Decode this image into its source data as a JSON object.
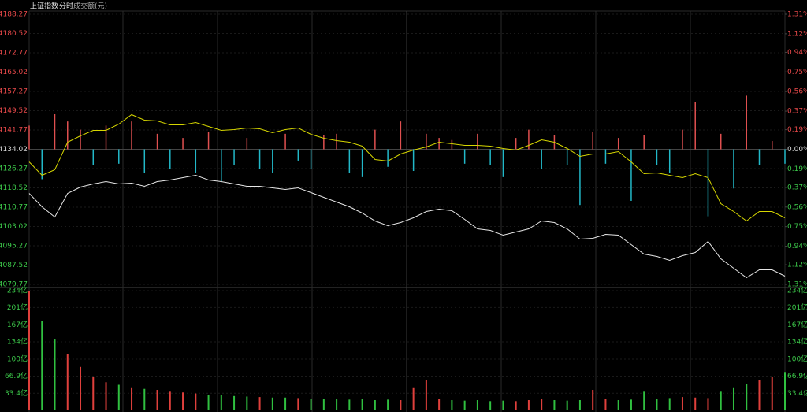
{
  "chart_data": [
    {
      "type": "line",
      "title": "上证指数",
      "subtitle": "分时",
      "ylim": [
        4079.77,
        4188.27
      ],
      "yticks": [
        4188.27,
        4180.52,
        4172.77,
        4165.02,
        4157.27,
        4149.52,
        4141.77,
        4134.02,
        4126.27,
        4118.52,
        4110.77,
        4103.02,
        4095.27,
        4087.52,
        4079.77
      ],
      "y2lim": [
        -1.31,
        1.31
      ],
      "y2ticks": [
        {
          "value": 1.31,
          "label": "1.31%"
        },
        {
          "value": 1.12,
          "label": "1.12%"
        },
        {
          "value": 0.94,
          "label": "0.94%"
        },
        {
          "value": 0.75,
          "label": "0.75%"
        },
        {
          "value": 0.56,
          "label": "0.56%"
        },
        {
          "value": 0.37,
          "label": "0.37%"
        },
        {
          "value": 0.19,
          "label": "0.19%"
        },
        {
          "value": 0,
          "label": "0.00%"
        },
        {
          "value": -0.19,
          "label": "0.19%"
        },
        {
          "value": -0.37,
          "label": "0.37%"
        },
        {
          "value": -0.56,
          "label": "0.56%"
        },
        {
          "value": -0.75,
          "label": "0.75%"
        },
        {
          "value": -0.94,
          "label": "0.94%"
        },
        {
          "value": -1.12,
          "label": "1.12%"
        },
        {
          "value": -1.31,
          "label": "1.31%"
        }
      ],
      "up_color": "#e8494a",
      "flat_color": "#d8d8d8",
      "down_color": "#3cc84a",
      "series": [
        {
          "color": "#e6e6e6",
          "values": [
            4116.31,
            4110.93,
            4106.82,
            4116.31,
            4118.84,
            4120.1,
            4121.05,
            4120.1,
            4120.42,
            4119.15,
            4121.05,
            4121.68,
            4122.63,
            4123.58,
            4121.68,
            4121.05,
            4120.1,
            4119.15,
            4119.15,
            4118.52,
            4117.89,
            4118.52,
            4116.62,
            4114.73,
            4112.83,
            4110.93,
            4108.4,
            4105.24,
            4103.34,
            4104.6,
            4106.5,
            4109.03,
            4109.98,
            4109.35,
            4105.87,
            4102.07,
            4101.44,
            4099.54,
            4100.81,
            4102.07,
            4105.24,
            4104.6,
            4102.07,
            4097.96,
            4098.28,
            4099.86,
            4099.54,
            4095.75,
            4091.95,
            4091.0,
            4089.42,
            4091.32,
            4092.58,
            4097.01,
            4090.05,
            4086.26,
            4082.46,
            4085.63,
            4085.63,
            4083.1
          ]
        },
        {
          "color": "#d6d600",
          "values": [
            4128.96,
            4123.58,
            4125.8,
            4136.87,
            4139.4,
            4141.61,
            4141.61,
            4144.14,
            4147.94,
            4145.72,
            4145.41,
            4143.83,
            4143.83,
            4144.77,
            4143.19,
            4141.61,
            4141.93,
            4142.56,
            4142.24,
            4140.66,
            4141.93,
            4142.56,
            4140.03,
            4138.45,
            4137.5,
            4136.87,
            4135.29,
            4129.91,
            4129.28,
            4132.12,
            4133.7,
            4134.97,
            4136.87,
            4136.23,
            4135.6,
            4135.6,
            4135.29,
            4134.34,
            4133.7,
            4135.6,
            4137.82,
            4136.87,
            4134.34,
            4131.17,
            4132.12,
            4132.12,
            4133.07,
            4128.96,
            4124.21,
            4124.53,
            4123.58,
            4122.63,
            4124.21,
            4122.63,
            4112.2,
            4109.03,
            4105.24,
            4109.03,
            4109.03,
            4106.5
          ]
        },
        {
          "axis": "y2",
          "color": "#e05050",
          "down_color": "#22b8c8",
          "values": [
            0.23,
            -0.29,
            0.34,
            0.27,
            0.19,
            -0.15,
            0.23,
            -0.14,
            0.27,
            -0.23,
            0.15,
            -0.19,
            0.11,
            -0.23,
            0.17,
            -0.31,
            -0.15,
            0.11,
            -0.19,
            -0.23,
            0.15,
            -0.11,
            -0.19,
            0.14,
            0.15,
            -0.23,
            -0.27,
            0.19,
            -0.17,
            0.27,
            -0.21,
            0.15,
            0.11,
            0.09,
            -0.14,
            0.15,
            -0.15,
            -0.27,
            0.11,
            0.19,
            -0.19,
            0.14,
            -0.15,
            -0.54,
            0.17,
            -0.14,
            0.11,
            -0.5,
            0.14,
            -0.15,
            -0.23,
            0.19,
            0.46,
            -0.65,
            0.15,
            -0.38,
            0.52,
            -0.15,
            0.08,
            -0.14
          ]
        }
      ]
    },
    {
      "type": "bar",
      "title": "成交额(元)",
      "ylim": [
        0,
        234
      ],
      "yticks": [
        {
          "value": 234,
          "label": "234亿"
        },
        {
          "value": 201,
          "label": "201亿"
        },
        {
          "value": 167,
          "label": "167亿"
        },
        {
          "value": 134,
          "label": "134亿"
        },
        {
          "value": 100,
          "label": "100亿"
        },
        {
          "value": 66.9,
          "label": "66.9亿"
        },
        {
          "value": 33.4,
          "label": "33.4亿"
        }
      ],
      "up_color": "#e0403c",
      "down_color": "#30c040",
      "tick_color": "#3cc84a",
      "values": [
        234,
        175,
        140,
        110,
        85,
        65,
        55,
        50,
        45,
        42,
        40,
        38,
        35,
        33,
        30,
        30,
        28,
        27,
        26,
        25,
        25,
        24,
        23,
        22,
        22,
        21,
        22,
        20,
        21,
        20,
        45,
        60,
        22,
        20,
        19,
        20,
        18,
        19,
        18,
        20,
        22,
        20,
        19,
        20,
        40,
        22,
        20,
        21,
        38,
        22,
        24,
        26,
        25,
        24,
        38,
        45,
        52,
        60,
        65,
        75
      ]
    }
  ]
}
